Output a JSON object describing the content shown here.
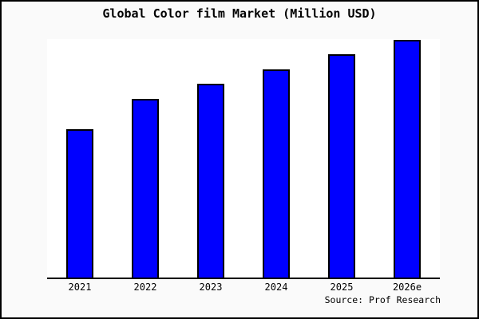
{
  "title": "Global Color film Market (Million USD)",
  "source": "Source: Prof Research",
  "colors": {
    "bar_fill": "#0000ff",
    "bar_border": "#000000",
    "canvas_background": "#fafafa",
    "plot_background": "#ffffff",
    "axis": "#000000",
    "frame_border": "#000000",
    "text": "#000000"
  },
  "chart_data": {
    "type": "bar",
    "title": "Global Color film Market (Million USD)",
    "categories": [
      "2021",
      "2022",
      "2023",
      "2024",
      "2025",
      "2026e"
    ],
    "values": [
      62.5,
      75,
      81.5,
      87.5,
      94,
      100
    ],
    "value_note": "No y-axis scale or data labels shown; values are relative bar heights normalized to 2026e = 100",
    "xlabel": "",
    "ylabel": "",
    "ylim": [
      0,
      100
    ],
    "legend": false,
    "gridlines": false,
    "y_axis_visible": false,
    "source": "Source: Prof Research"
  }
}
